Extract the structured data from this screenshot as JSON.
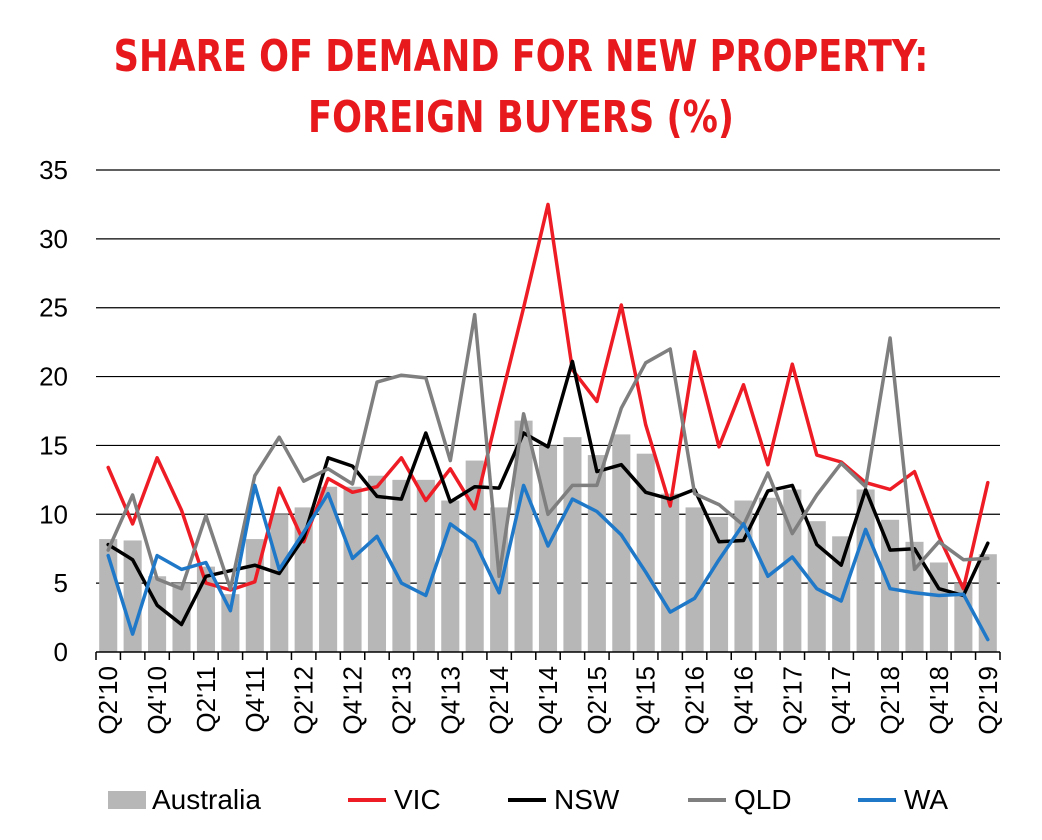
{
  "title_line1": "SHARE OF DEMAND FOR NEW PROPERTY:",
  "title_line2": "FOREIGN BUYERS (%)",
  "chart_data": {
    "type": "bar+line",
    "title": "SHARE OF DEMAND FOR NEW PROPERTY: FOREIGN BUYERS (%)",
    "xlabel": "",
    "ylabel": "",
    "ylim": [
      0,
      35
    ],
    "yticks": [
      0,
      5,
      10,
      15,
      20,
      25,
      30,
      35
    ],
    "grid": "horizontal",
    "legend_position": "bottom",
    "categories": [
      "Q2'10",
      "Q3'10",
      "Q4'10",
      "Q1'11",
      "Q2'11",
      "Q3'11",
      "Q4'11",
      "Q1'12",
      "Q2'12",
      "Q3'12",
      "Q4'12",
      "Q1'13",
      "Q2'13",
      "Q3'13",
      "Q4'13",
      "Q1'14",
      "Q2'14",
      "Q3'14",
      "Q4'14",
      "Q1'15",
      "Q2'15",
      "Q3'15",
      "Q4'15",
      "Q1'16",
      "Q2'16",
      "Q3'16",
      "Q4'16",
      "Q1'17",
      "Q2'17",
      "Q3'17",
      "Q4'17",
      "Q1'18",
      "Q2'18",
      "Q3'18",
      "Q4'18",
      "Q1'19",
      "Q2'19"
    ],
    "tick_labels": [
      "Q2'10",
      "",
      "Q4'10",
      "",
      "Q2'11",
      "",
      "Q4'11",
      "",
      "Q2'12",
      "",
      "Q4'12",
      "",
      "Q2'13",
      "",
      "Q4'13",
      "",
      "Q2'14",
      "",
      "Q4'14",
      "",
      "Q2'15",
      "",
      "Q4'15",
      "",
      "Q2'16",
      "",
      "Q4'16",
      "",
      "Q2'17",
      "",
      "Q4'17",
      "",
      "Q2'18",
      "",
      "Q4'18",
      "",
      "Q2'19"
    ],
    "series": [
      {
        "name": "Australia",
        "type": "bar",
        "color": "#b7b7b7",
        "values": [
          8.2,
          8.1,
          5.5,
          5.0,
          6.2,
          4.2,
          8.2,
          10.0,
          10.5,
          12.0,
          12.0,
          12.8,
          12.5,
          12.5,
          11.0,
          13.9,
          10.5,
          16.8,
          15.0,
          15.6,
          14.3,
          15.8,
          14.4,
          11.5,
          10.5,
          9.8,
          11.0,
          11.2,
          11.8,
          9.5,
          8.4,
          11.8,
          9.6,
          8.0,
          6.5,
          5.0,
          7.1
        ]
      },
      {
        "name": "VIC",
        "type": "line",
        "color": "#ee1c25",
        "values": [
          13.4,
          9.3,
          14.1,
          10.3,
          5.0,
          4.5,
          5.1,
          11.9,
          8.0,
          12.6,
          11.6,
          12.0,
          14.1,
          11.0,
          13.3,
          10.4,
          17.8,
          25.0,
          32.5,
          20.5,
          18.2,
          25.2,
          16.5,
          10.6,
          21.8,
          14.9,
          19.4,
          13.6,
          20.9,
          14.3,
          13.8,
          12.3,
          11.8,
          13.1,
          8.4,
          4.6,
          12.3
        ]
      },
      {
        "name": "NSW",
        "type": "line",
        "color": "#000000",
        "values": [
          7.8,
          6.7,
          3.4,
          2.0,
          5.5,
          5.9,
          6.3,
          5.7,
          8.3,
          14.1,
          13.5,
          11.3,
          11.1,
          15.9,
          10.9,
          12.0,
          11.9,
          15.9,
          14.9,
          21.1,
          13.1,
          13.6,
          11.6,
          11.1,
          11.8,
          8.0,
          8.1,
          11.7,
          12.1,
          7.8,
          6.3,
          11.8,
          7.4,
          7.5,
          4.6,
          4.1,
          7.9
        ]
      },
      {
        "name": "QLD",
        "type": "line",
        "color": "#7f7f7f",
        "values": [
          7.4,
          11.4,
          5.3,
          4.6,
          9.9,
          4.6,
          12.8,
          15.6,
          12.4,
          13.3,
          12.2,
          19.6,
          20.1,
          19.9,
          13.9,
          24.5,
          5.5,
          17.3,
          10.0,
          12.1,
          12.1,
          17.7,
          21.0,
          22.0,
          11.5,
          10.7,
          9.2,
          13.0,
          8.6,
          11.4,
          13.7,
          12.0,
          22.8,
          6.0,
          8.0,
          6.7,
          6.8
        ]
      },
      {
        "name": "WA",
        "type": "line",
        "color": "#1f79c8",
        "values": [
          7.0,
          1.3,
          7.0,
          6.0,
          6.5,
          3.0,
          12.1,
          6.0,
          8.7,
          11.5,
          6.8,
          8.4,
          5.0,
          4.1,
          9.3,
          8.0,
          4.3,
          12.1,
          7.7,
          11.1,
          10.2,
          8.5,
          5.8,
          2.9,
          3.9,
          6.7,
          9.3,
          5.5,
          6.9,
          4.6,
          3.7,
          8.9,
          4.6,
          4.3,
          4.1,
          4.2,
          0.9
        ]
      }
    ]
  }
}
